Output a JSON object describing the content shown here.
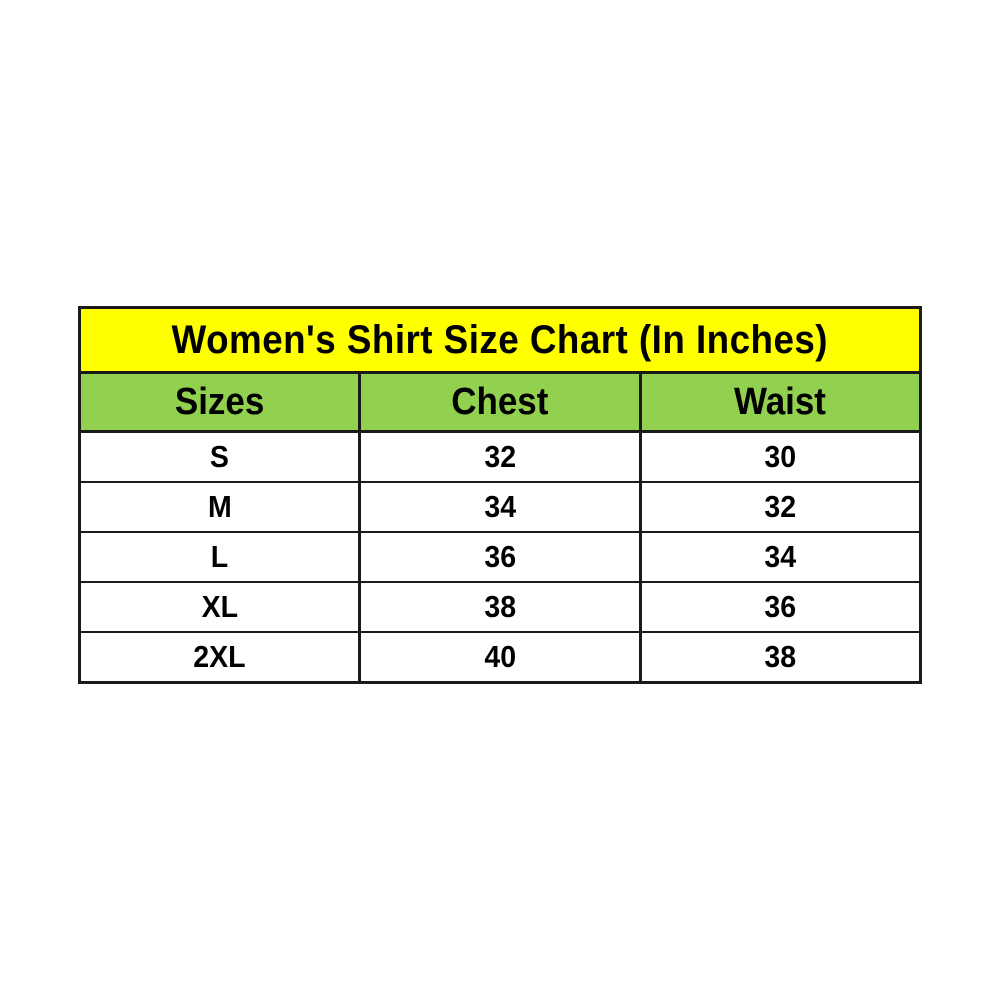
{
  "table": {
    "title": "Women's Shirt Size Chart (In Inches)",
    "columns": [
      "Sizes",
      "Chest",
      "Waist"
    ],
    "rows": [
      [
        "S",
        "32",
        "30"
      ],
      [
        "M",
        "34",
        "32"
      ],
      [
        "L",
        "36",
        "34"
      ],
      [
        "XL",
        "38",
        "36"
      ],
      [
        "2XL",
        "40",
        "38"
      ]
    ],
    "colors": {
      "title_bg": "#ffff00",
      "header_bg": "#92d050",
      "row_bg": "#ffffff",
      "border": "#1a1a1a",
      "text": "#000000"
    }
  },
  "chart_data": {
    "type": "table",
    "title": "Women's Shirt Size Chart (In Inches)",
    "columns": [
      "Sizes",
      "Chest",
      "Waist"
    ],
    "rows": [
      [
        "S",
        32,
        30
      ],
      [
        "M",
        34,
        32
      ],
      [
        "L",
        36,
        34
      ],
      [
        "XL",
        38,
        36
      ],
      [
        "2XL",
        40,
        38
      ]
    ],
    "units": "inches"
  }
}
